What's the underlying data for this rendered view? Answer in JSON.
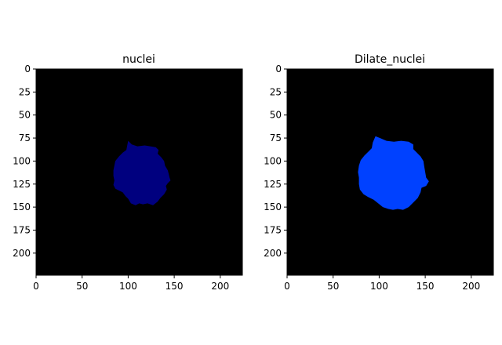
{
  "chart_data": [
    {
      "type": "image",
      "title": "nuclei",
      "image_size": [
        224,
        224
      ],
      "background_color": "#000000",
      "mask_color": "#00007f",
      "x_ticks": [
        "0",
        "50",
        "100",
        "150",
        "200"
      ],
      "y_ticks": [
        "0",
        "25",
        "50",
        "75",
        "100",
        "125",
        "150",
        "175",
        "200"
      ],
      "mask_outline": [
        [
          100,
          78
        ],
        [
          104,
          82
        ],
        [
          110,
          84
        ],
        [
          118,
          83
        ],
        [
          124,
          84
        ],
        [
          130,
          85
        ],
        [
          133,
          88
        ],
        [
          132,
          92
        ],
        [
          136,
          96
        ],
        [
          139,
          100
        ],
        [
          140,
          105
        ],
        [
          143,
          110
        ],
        [
          144,
          114
        ],
        [
          145,
          118
        ],
        [
          146,
          121
        ],
        [
          143,
          124
        ],
        [
          141,
          127
        ],
        [
          142,
          131
        ],
        [
          139,
          136
        ],
        [
          135,
          140
        ],
        [
          132,
          144
        ],
        [
          127,
          148
        ],
        [
          121,
          146
        ],
        [
          116,
          147
        ],
        [
          112,
          146
        ],
        [
          108,
          148
        ],
        [
          103,
          146
        ],
        [
          100,
          141
        ],
        [
          97,
          138
        ],
        [
          94,
          134
        ],
        [
          90,
          132
        ],
        [
          86,
          130
        ],
        [
          84,
          126
        ],
        [
          85,
          121
        ],
        [
          84,
          116
        ],
        [
          84,
          110
        ],
        [
          85,
          105
        ],
        [
          86,
          100
        ],
        [
          90,
          95
        ],
        [
          94,
          91
        ],
        [
          98,
          88
        ],
        [
          99,
          83
        ]
      ]
    },
    {
      "type": "image",
      "title": "Dilate_nuclei",
      "image_size": [
        224,
        224
      ],
      "background_color": "#000000",
      "mask_color": "#0041ff",
      "x_ticks": [
        "0",
        "50",
        "100",
        "150",
        "200"
      ],
      "y_ticks": [
        "0",
        "25",
        "50",
        "75",
        "100",
        "125",
        "150",
        "175",
        "200"
      ],
      "mask_outline": [
        [
          96,
          73
        ],
        [
          101,
          75
        ],
        [
          108,
          78
        ],
        [
          116,
          79
        ],
        [
          124,
          78
        ],
        [
          132,
          79
        ],
        [
          137,
          82
        ],
        [
          137,
          87
        ],
        [
          141,
          91
        ],
        [
          145,
          95
        ],
        [
          148,
          100
        ],
        [
          149,
          106
        ],
        [
          150,
          112
        ],
        [
          151,
          118
        ],
        [
          154,
          122
        ],
        [
          151,
          127
        ],
        [
          146,
          129
        ],
        [
          145,
          134
        ],
        [
          142,
          140
        ],
        [
          137,
          145
        ],
        [
          132,
          150
        ],
        [
          126,
          153
        ],
        [
          120,
          152
        ],
        [
          115,
          153
        ],
        [
          110,
          152
        ],
        [
          104,
          150
        ],
        [
          99,
          146
        ],
        [
          94,
          142
        ],
        [
          88,
          139
        ],
        [
          83,
          136
        ],
        [
          79,
          131
        ],
        [
          78,
          125
        ],
        [
          78,
          118
        ],
        [
          77,
          112
        ],
        [
          78,
          105
        ],
        [
          80,
          99
        ],
        [
          84,
          94
        ],
        [
          88,
          90
        ],
        [
          92,
          86
        ],
        [
          93,
          80
        ]
      ]
    }
  ]
}
